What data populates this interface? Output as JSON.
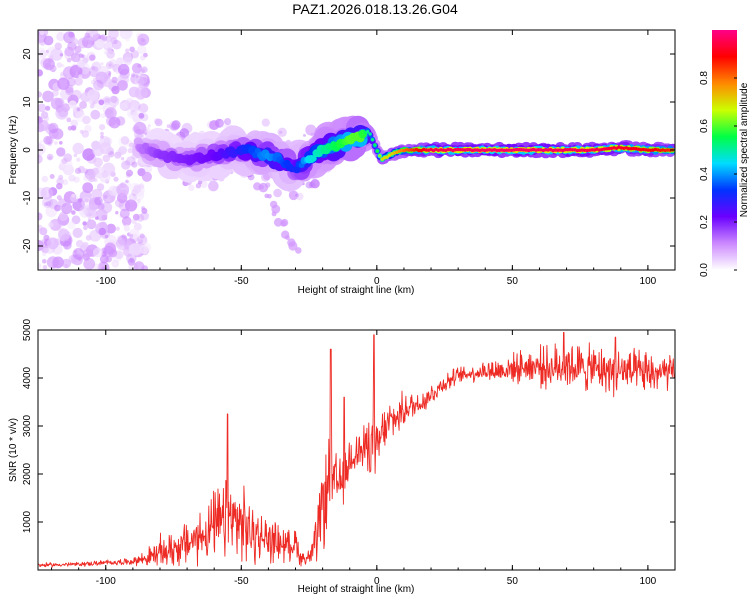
{
  "figure_title": "PAZ1.2026.018.13.26.G04",
  "chart_data": [
    {
      "type": "heatmap",
      "title": "PAZ1.2026.018.13.26.G04",
      "xlabel": "Height of straight line (km)",
      "ylabel": "Frequency (Hz)",
      "xlim": [
        -125,
        110
      ],
      "ylim": [
        -25,
        25
      ],
      "xticks": [
        -100,
        -50,
        0,
        50,
        100
      ],
      "yticks": [
        -20,
        -10,
        0,
        10,
        20
      ],
      "xtick_labels": [
        "-100",
        "-50",
        "0",
        "50",
        "100"
      ],
      "ytick_labels": [
        "-20",
        "-10",
        "0",
        "10",
        "20"
      ],
      "colorbar": {
        "label": "Normalized spectral amplitude",
        "range": [
          0,
          1
        ],
        "ticks": [
          0.0,
          0.2,
          0.4,
          0.6,
          0.8
        ],
        "tick_labels": [
          "0.0",
          "0.2",
          "0.4",
          "0.6",
          "0.8"
        ],
        "colors": [
          "#ffffff",
          "#cc88ff",
          "#6a00ff",
          "#0033ff",
          "#00ddff",
          "#00ff44",
          "#ccff00",
          "#ff8800",
          "#ff0000",
          "#ff0088"
        ]
      },
      "ridge": {
        "description": "frequency of the dominant signal vs height",
        "x": [
          -88,
          -80,
          -70,
          -60,
          -50,
          -40,
          -30,
          -25,
          -20,
          -15,
          -10,
          -6,
          -3,
          0,
          2,
          5,
          10,
          20,
          40,
          60,
          80,
          90,
          100,
          110
        ],
        "y": [
          1,
          -1,
          -2,
          -1,
          0,
          -1,
          -4,
          -2,
          0,
          1,
          2,
          3,
          4,
          0,
          -2,
          -1,
          0,
          0,
          0,
          0,
          0,
          0.5,
          0,
          0
        ],
        "peak_amplitude": [
          0.12,
          0.18,
          0.2,
          0.22,
          0.3,
          0.4,
          0.3,
          0.45,
          0.5,
          0.55,
          0.6,
          0.6,
          0.5,
          0.55,
          0.7,
          0.7,
          0.8,
          0.95,
          0.97,
          0.97,
          0.95,
          0.92,
          0.9,
          0.85
        ]
      },
      "noise_region_x": [
        -125,
        -88
      ],
      "noise_peak_amplitude": 0.12
    },
    {
      "type": "line",
      "xlabel": "Height of straight line (km)",
      "ylabel": "SNR (10 * v/v)",
      "xlim": [
        -125,
        110
      ],
      "ylim": [
        0,
        5000
      ],
      "xticks": [
        -100,
        -50,
        0,
        50,
        100
      ],
      "yticks": [
        1000,
        2000,
        3000,
        4000,
        5000
      ],
      "xtick_labels": [
        "-100",
        "-50",
        "0",
        "50",
        "100"
      ],
      "ytick_labels": [
        "1000",
        "2000",
        "3000",
        "4000",
        "5000"
      ],
      "series": [
        {
          "name": "SNR",
          "color": "#ee2a24",
          "x": [
            -125,
            -110,
            -100,
            -90,
            -85,
            -80,
            -75,
            -70,
            -65,
            -60,
            -55,
            -50,
            -45,
            -40,
            -35,
            -32,
            -30,
            -28,
            -25,
            -22,
            -20,
            -18,
            -15,
            -12,
            -10,
            -8,
            -5,
            -3,
            -1,
            0,
            1,
            3,
            5,
            8,
            10,
            15,
            20,
            25,
            30,
            35,
            40,
            45,
            50,
            55,
            60,
            65,
            70,
            75,
            80,
            85,
            90,
            95,
            100,
            105,
            110
          ],
          "y": [
            100,
            120,
            150,
            180,
            250,
            350,
            450,
            550,
            700,
            900,
            1050,
            950,
            700,
            650,
            550,
            500,
            600,
            250,
            250,
            600,
            1400,
            1700,
            1750,
            1900,
            2300,
            2500,
            2450,
            2700,
            2500,
            2100,
            2700,
            2950,
            3100,
            3200,
            3350,
            3450,
            3650,
            3900,
            4050,
            4100,
            4150,
            4150,
            4200,
            4250,
            4250,
            4200,
            4300,
            4200,
            4200,
            4150,
            4150,
            4100,
            4100,
            4100,
            4100
          ],
          "noise_amplitude": [
            40,
            40,
            50,
            60,
            150,
            300,
            350,
            400,
            500,
            600,
            800,
            700,
            500,
            400,
            350,
            250,
            300,
            150,
            150,
            500,
            800,
            900,
            600,
            500,
            450,
            400,
            450,
            500,
            700,
            900,
            500,
            400,
            350,
            350,
            300,
            250,
            200,
            180,
            150,
            150,
            200,
            250,
            250,
            300,
            350,
            400,
            450,
            450,
            400,
            400,
            450,
            400,
            400,
            350,
            300
          ],
          "spikes": [
            {
              "x": -55,
              "y": 3250
            },
            {
              "x": -17,
              "y": 4600
            },
            {
              "x": -12,
              "y": 3600
            },
            {
              "x": -1,
              "y": 4900
            },
            {
              "x": 69,
              "y": 4950
            },
            {
              "x": 88,
              "y": 4850
            }
          ]
        }
      ]
    }
  ]
}
